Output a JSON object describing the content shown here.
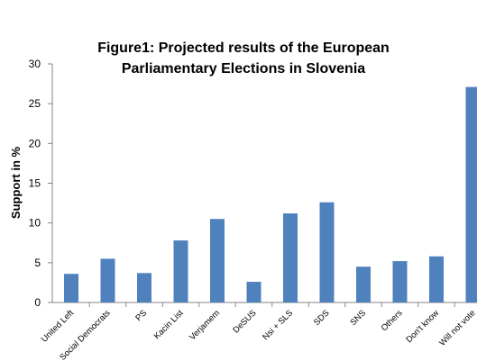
{
  "chart_data": {
    "type": "bar",
    "title": "Figure1: Projected results of the European",
    "subtitle": "Parliamentary Elections in Slovenia",
    "xlabel": "",
    "ylabel": "Support in %",
    "ylim": [
      0,
      30
    ],
    "yticks": [
      "0",
      "5",
      "10",
      "15",
      "20",
      "25",
      "30"
    ],
    "grid": false,
    "legend": "none",
    "categories": [
      "United Left",
      "Social Democrats",
      "PS",
      "Kacin List",
      "Verjamem",
      "DeSUS",
      "Nsi + SLS",
      "SDS",
      "SNS",
      "Others",
      "Don't know",
      "Will not vote"
    ],
    "series": [
      {
        "values": [
          3.6,
          5.5,
          3.7,
          7.8,
          10.5,
          2.6,
          11.2,
          12.6,
          4.5,
          5.2,
          5.8,
          27.1
        ]
      }
    ],
    "colors": {
      "bar": "#4f81bd",
      "axis": "#868686"
    }
  }
}
